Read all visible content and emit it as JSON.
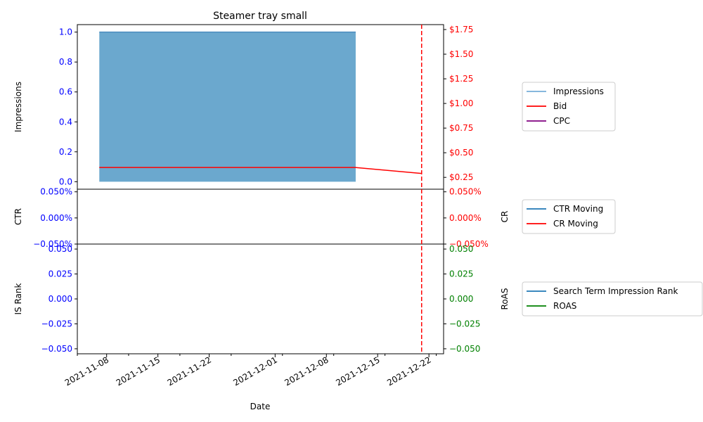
{
  "chart_data": {
    "type": "line",
    "title": "Steamer tray small",
    "xlabel": "Date",
    "x_ticks": [
      "2021-11-08",
      "2021-11-15",
      "2021-11-22",
      "2021-12-01",
      "2021-12-08",
      "2021-12-15",
      "2021-12-22"
    ],
    "marker_date": "2021-12-21",
    "colors": {
      "blue": "#0000ff",
      "red": "#ff0000",
      "green": "#008000",
      "impressions": "#5b9ec9",
      "bid": "#ff0000",
      "cpc": "#800080",
      "ctr": "#1f77b4",
      "cr": "#ff0000",
      "rank": "#1f77b4",
      "roas": "#008000"
    },
    "panels": [
      {
        "id": "top",
        "left_label": "Impressions",
        "right_label": "",
        "left_ylim": [
          -0.05,
          1.05
        ],
        "right_ylim": [
          0.13,
          1.8
        ],
        "left_ticks": [
          {
            "v": 0.0,
            "t": "0.0"
          },
          {
            "v": 0.2,
            "t": "0.2"
          },
          {
            "v": 0.4,
            "t": "0.4"
          },
          {
            "v": 0.6,
            "t": "0.6"
          },
          {
            "v": 0.8,
            "t": "0.8"
          },
          {
            "v": 1.0,
            "t": "1.0"
          }
        ],
        "right_ticks": [
          {
            "v": 0.25,
            "t": "$0.25"
          },
          {
            "v": 0.5,
            "t": "$0.50"
          },
          {
            "v": 0.75,
            "t": "$0.75"
          },
          {
            "v": 1.0,
            "t": "$1.00"
          },
          {
            "v": 1.25,
            "t": "$1.25"
          },
          {
            "v": 1.5,
            "t": "$1.50"
          },
          {
            "v": 1.75,
            "t": "$1.75"
          }
        ],
        "impressions_area": {
          "x": [
            "2021-11-07",
            "2021-12-12"
          ],
          "y": [
            1.0,
            1.0
          ]
        },
        "bid_line": {
          "x": [
            "2021-11-07",
            "2021-12-12",
            "2021-12-21"
          ],
          "y": [
            0.35,
            0.35,
            0.29
          ]
        },
        "legend": [
          "Impressions",
          "Bid",
          "CPC"
        ]
      },
      {
        "id": "middle",
        "left_label": "CTR",
        "right_label": "CR",
        "left_ylim": [
          -0.05,
          0.055
        ],
        "right_ylim": [
          -0.05,
          0.055
        ],
        "left_ticks": [
          {
            "v": -0.05,
            "t": "−0.050%"
          },
          {
            "v": 0.0,
            "t": "0.000%"
          },
          {
            "v": 0.05,
            "t": "0.050%"
          }
        ],
        "right_ticks": [
          {
            "v": -0.05,
            "t": "−0.050%"
          },
          {
            "v": 0.0,
            "t": "0.000%"
          },
          {
            "v": 0.05,
            "t": "0.050%"
          }
        ],
        "legend": [
          "CTR Moving",
          "CR Moving"
        ]
      },
      {
        "id": "bottom",
        "left_label": "IS Rank",
        "right_label": "RoAS",
        "left_ylim": [
          -0.055,
          0.055
        ],
        "right_ylim": [
          -0.055,
          0.055
        ],
        "left_ticks": [
          {
            "v": -0.05,
            "t": "−0.050"
          },
          {
            "v": -0.025,
            "t": "−0.025"
          },
          {
            "v": 0.0,
            "t": "0.000"
          },
          {
            "v": 0.025,
            "t": "0.025"
          },
          {
            "v": 0.05,
            "t": "0.050"
          }
        ],
        "right_ticks": [
          {
            "v": -0.05,
            "t": "−0.050"
          },
          {
            "v": -0.025,
            "t": "−0.025"
          },
          {
            "v": 0.0,
            "t": "0.000"
          },
          {
            "v": 0.025,
            "t": "0.025"
          },
          {
            "v": 0.05,
            "t": "0.050"
          }
        ],
        "legend": [
          "Search Term Impression Rank",
          "ROAS"
        ]
      }
    ]
  }
}
